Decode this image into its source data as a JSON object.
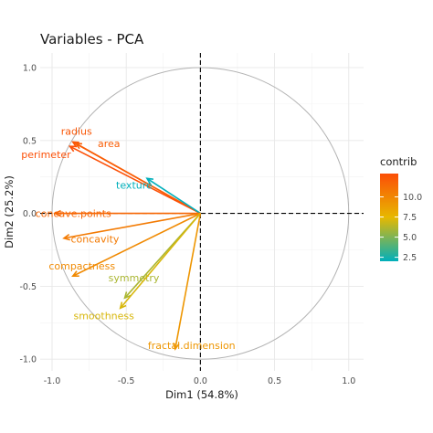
{
  "chart_data": {
    "type": "scatter",
    "subtype": "pca-variable-correlation-circle",
    "title": "Variables - PCA",
    "xlabel": "Dim1 (54.8%)",
    "ylabel": "Dim2 (25.2%)",
    "xlim": [
      -1.08,
      1.1
    ],
    "ylim": [
      -1.08,
      1.1
    ],
    "xticks": [
      -1.0,
      -0.5,
      0.0,
      0.5,
      1.0
    ],
    "yticks": [
      -1.0,
      -0.5,
      0.0,
      0.5,
      1.0
    ],
    "xtick_labels": [
      "-1.0",
      "-0.5",
      "0.0",
      "0.5",
      "1.0"
    ],
    "ytick_labels": [
      "-1.0",
      "-0.5",
      "0.0",
      "0.5",
      "1.0"
    ],
    "grid": true,
    "unit_circle": true,
    "legend": {
      "title": "contrib",
      "position": "right",
      "range": [
        2.0,
        12.9
      ],
      "ticks": [
        2.5,
        5.0,
        7.5,
        10.0
      ],
      "tick_labels": [
        "2.5",
        "5.0",
        "7.5",
        "10.0"
      ],
      "colors": [
        "#00AFBB",
        "#E7B800",
        "#FC4E07"
      ]
    },
    "variables": [
      {
        "name": "radius",
        "x": -0.86,
        "y": 0.49,
        "contrib": 12.5
      },
      {
        "name": "area",
        "x": -0.84,
        "y": 0.48,
        "contrib": 12.1
      },
      {
        "name": "perimeter",
        "x": -0.88,
        "y": 0.46,
        "contrib": 12.8
      },
      {
        "name": "texture",
        "x": -0.36,
        "y": 0.24,
        "contrib": 2.0
      },
      {
        "name": "concave.points",
        "x": -0.98,
        "y": 0.0,
        "contrib": 11.6
      },
      {
        "name": "concavity",
        "x": -0.92,
        "y": -0.17,
        "contrib": 10.6
      },
      {
        "name": "compactness",
        "x": -0.86,
        "y": -0.43,
        "contrib": 9.8
      },
      {
        "name": "symmetry",
        "x": -0.51,
        "y": -0.58,
        "contrib": 6.0
      },
      {
        "name": "smoothness",
        "x": -0.54,
        "y": -0.65,
        "contrib": 7.1
      },
      {
        "name": "fractal.dimension",
        "x": -0.17,
        "y": -0.93,
        "contrib": 9.2
      }
    ]
  }
}
